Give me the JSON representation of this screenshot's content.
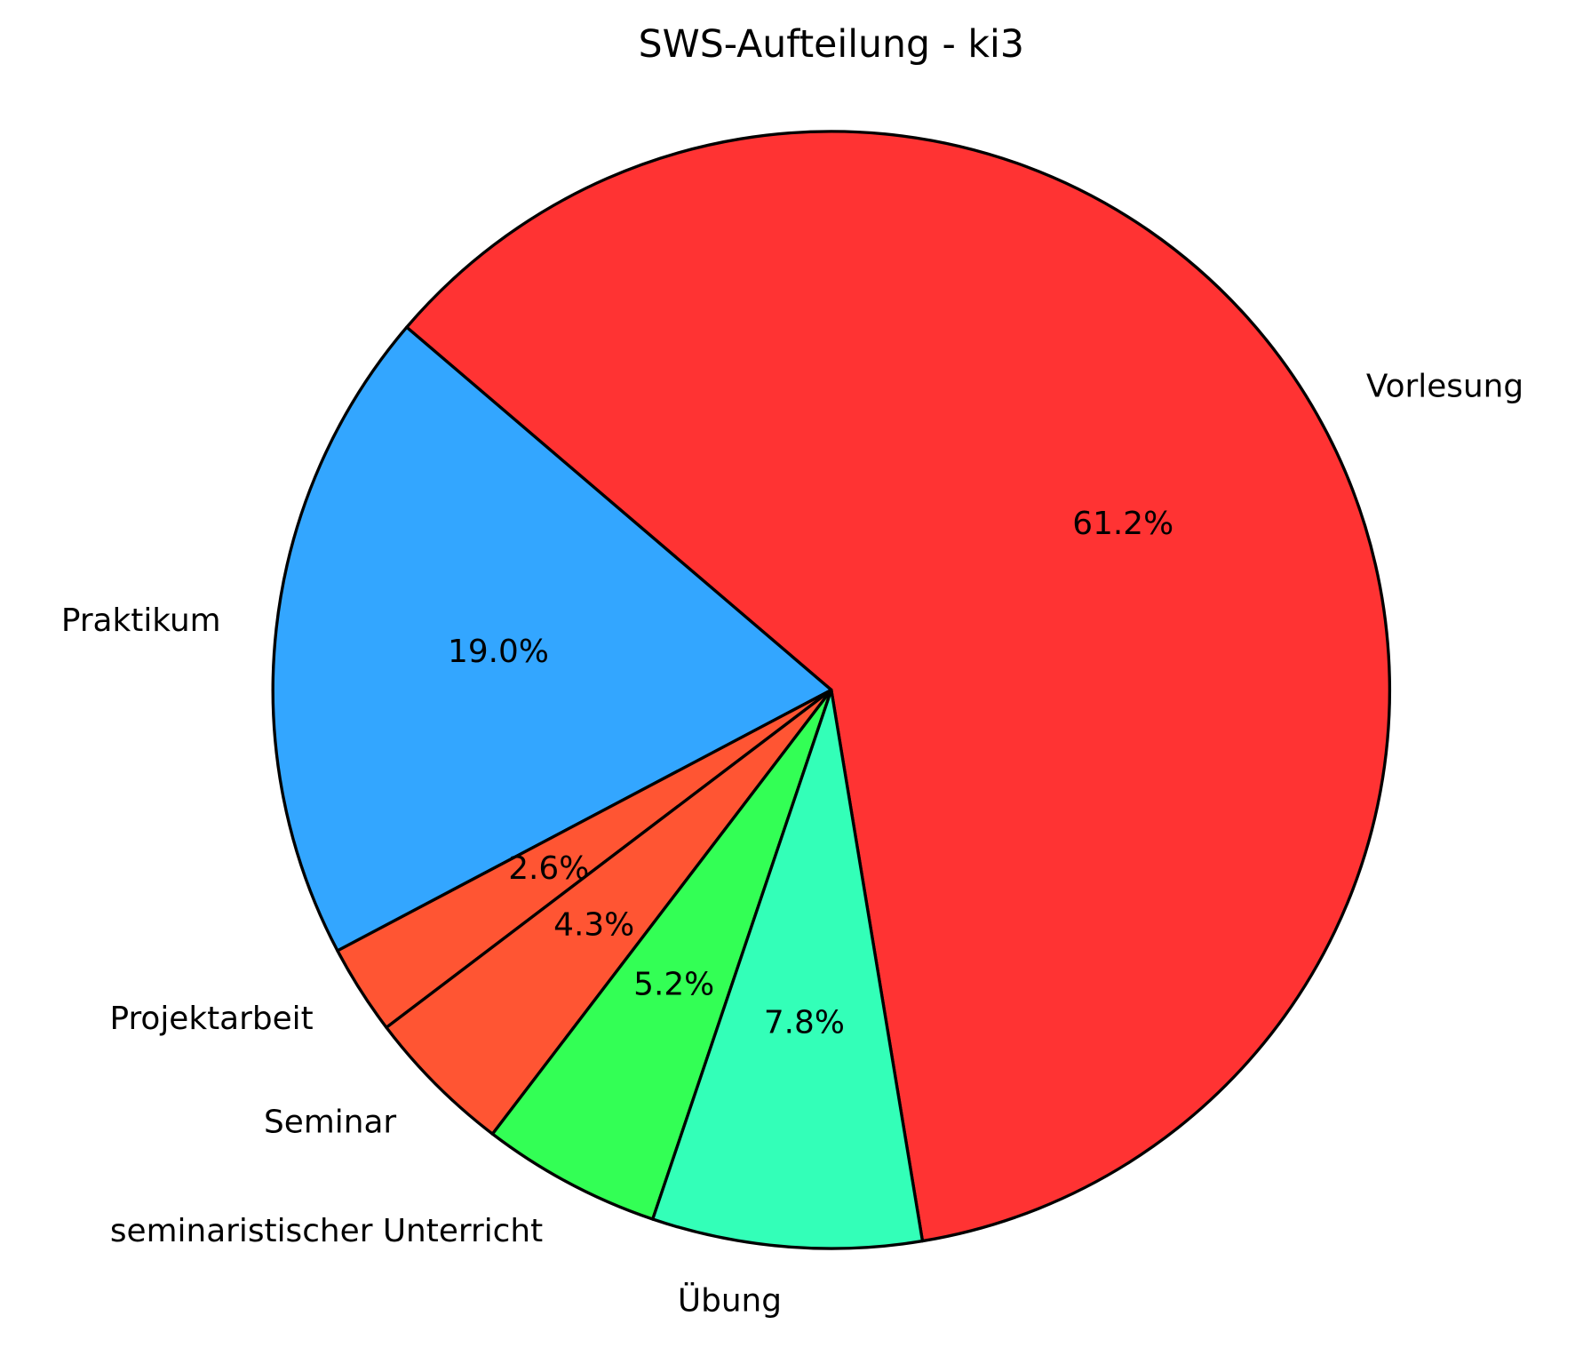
{
  "chart_data": {
    "type": "pie",
    "title": "SWS-Aufteilung - ki3",
    "categories": [
      "Vorlesung",
      "Praktikum",
      "Projektarbeit",
      "Seminar",
      "seminaristischer Unterricht",
      "Übung"
    ],
    "values": [
      61.2,
      19.0,
      2.6,
      4.3,
      5.2,
      7.8
    ],
    "value_labels": [
      "61.2%",
      "19.0%",
      "2.6%",
      "4.3%",
      "5.2%",
      "7.8%"
    ],
    "colors": [
      "#ff3333",
      "#33a6ff",
      "#ff5533",
      "#ff5533",
      "#33ff55",
      "#33ffb8"
    ]
  }
}
